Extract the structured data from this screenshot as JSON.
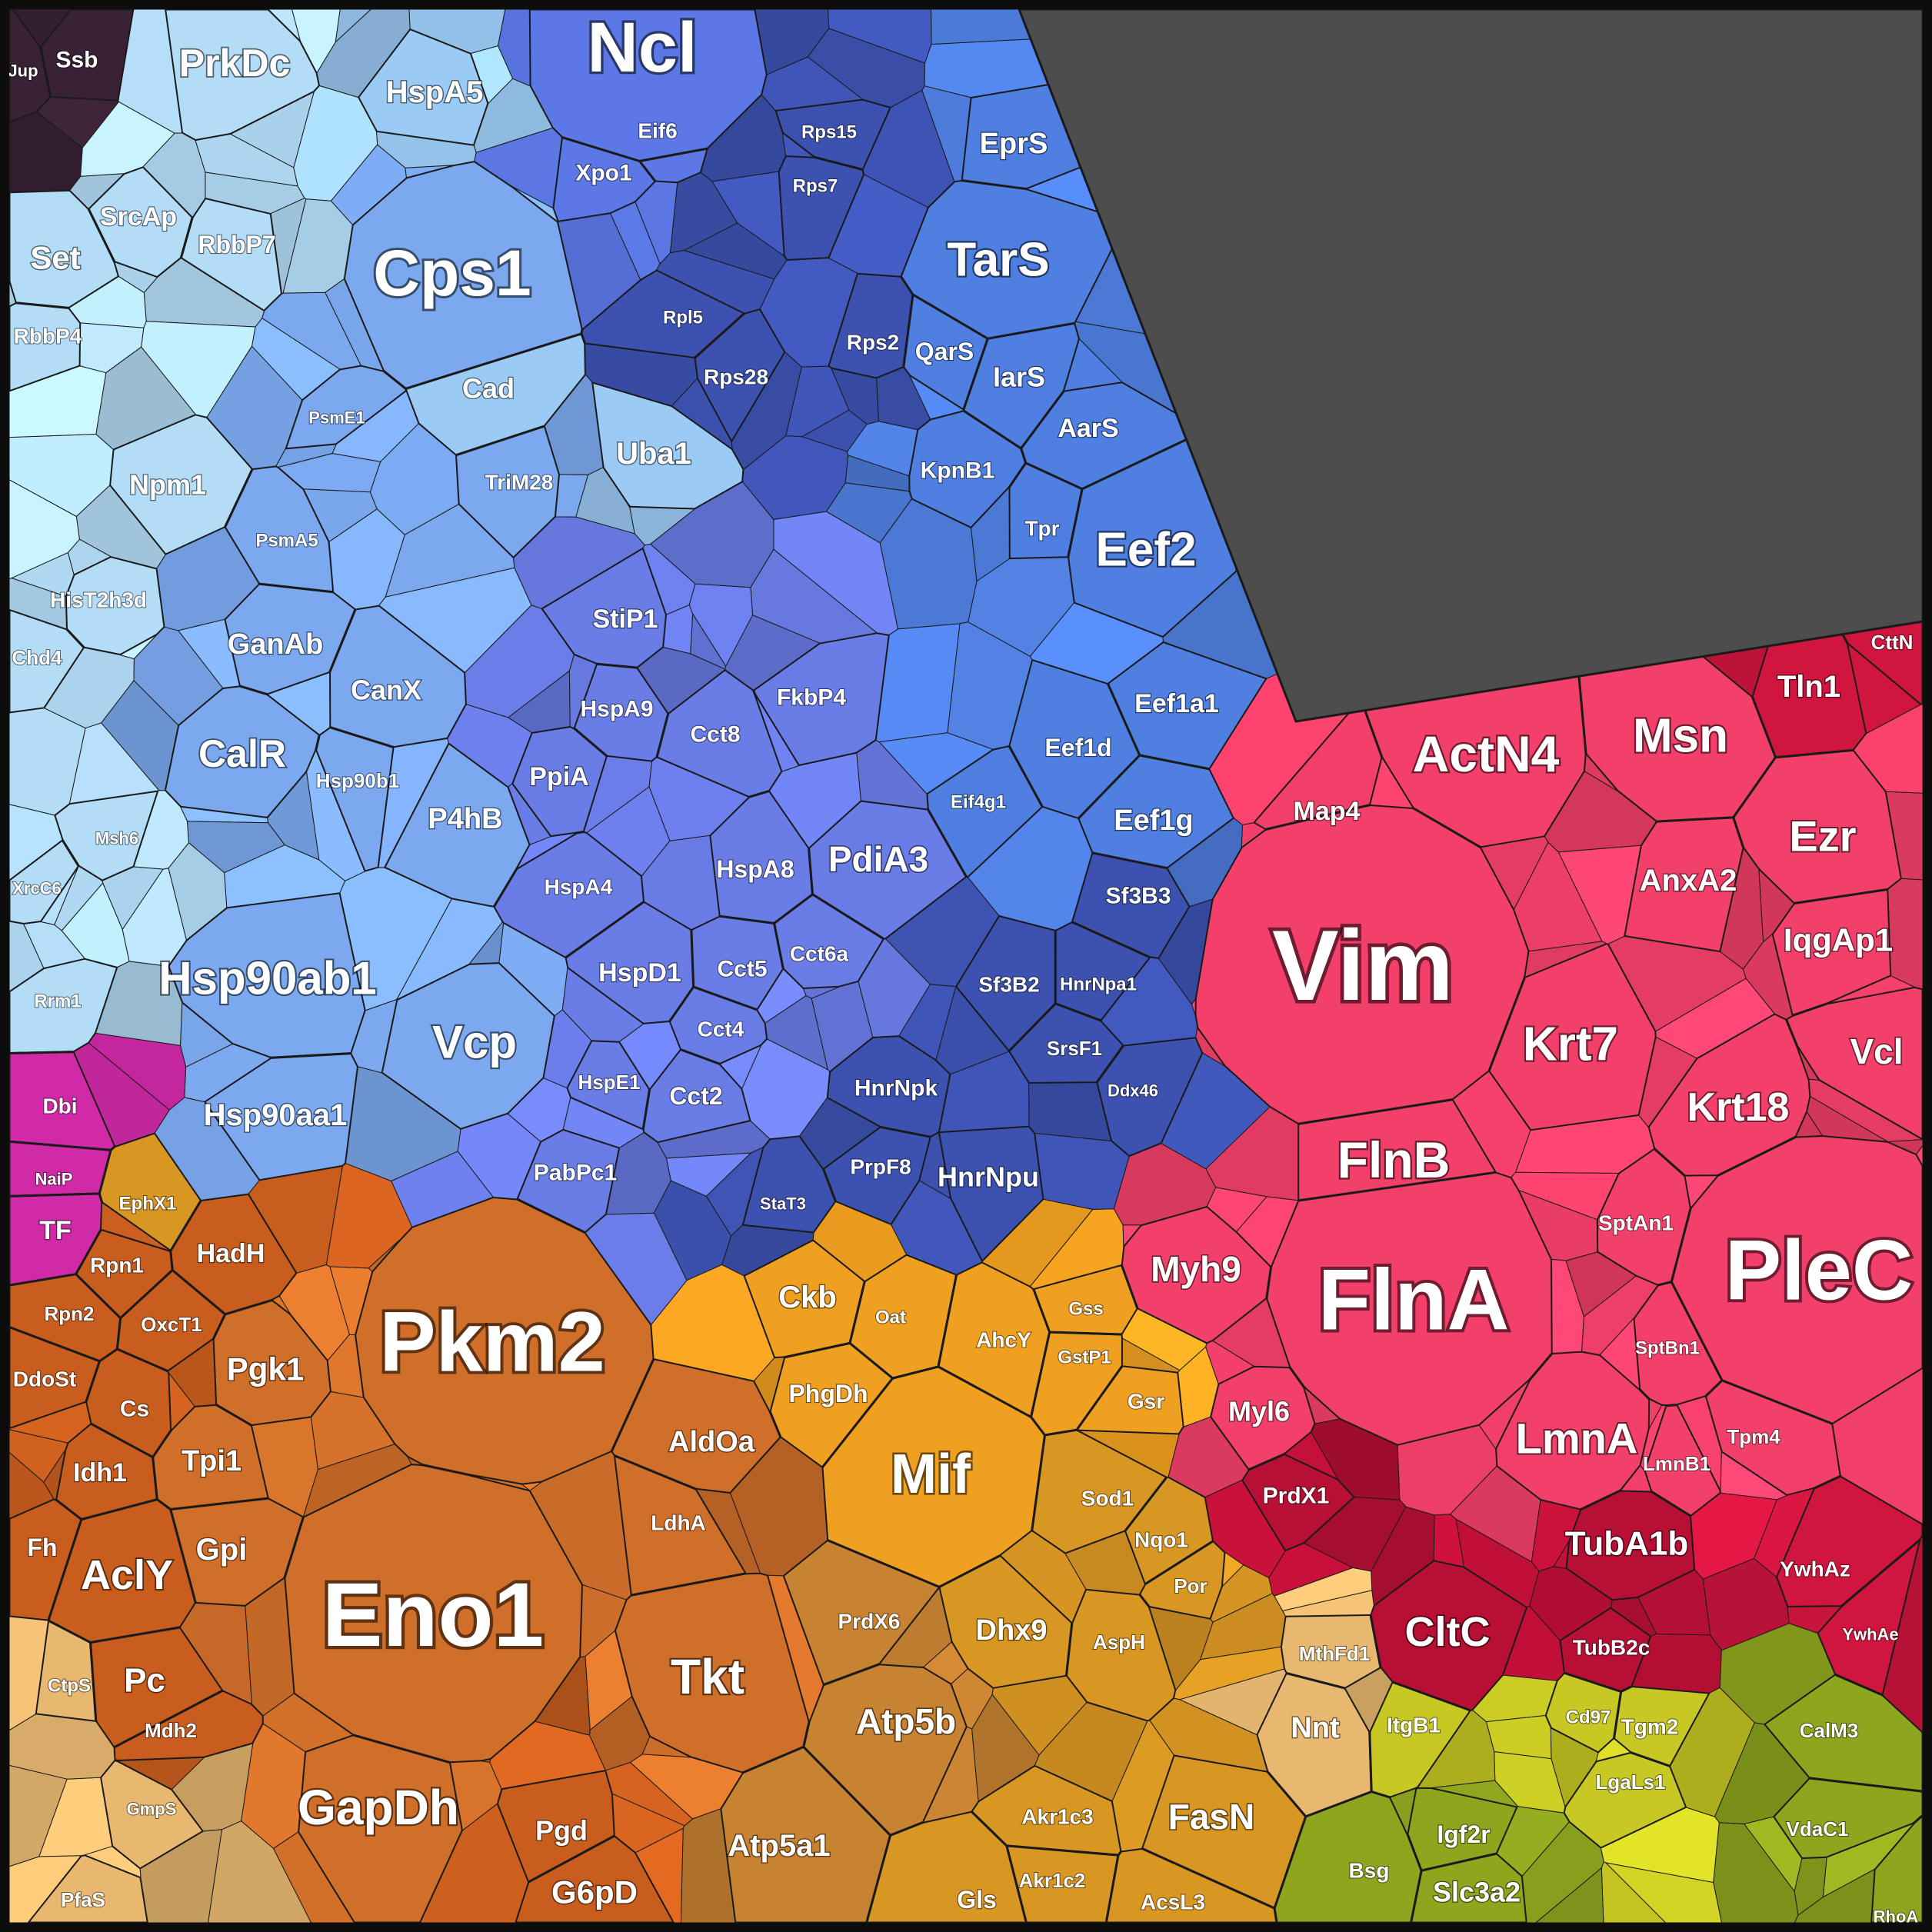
{
  "colors": {
    "background": "#4d4d4d",
    "border": "#0d0d0d",
    "group_colors": {
      "purple_dark": "#3a2236",
      "cyan_light": "#b3dcf7",
      "sky_light": "#9bcaf4",
      "blue_mid": "#7ba8ee",
      "blue_periwinkle": "#6f8fe0",
      "blue_royal": "#5b78e6",
      "blue_navy": "#3d52b0",
      "blue_bright": "#4f7fe0",
      "blue_violet": "#6a7ce6",
      "magenta": "#d12aa7",
      "orange_dark": "#c85d1e",
      "orange_mid": "#d06f2a",
      "orange_amber": "#f0a020",
      "orange_brown": "#c78232",
      "orange_gold": "#d89623",
      "orange_sand": "#e8b870",
      "pink_red": "#f3406a",
      "crimson": "#d0153e",
      "crimson_dark": "#b80f35",
      "olive_yellow": "#c7c823",
      "olive_green": "#8ea51e"
    }
  },
  "cells": [
    {
      "label": "Ncl",
      "color_group": "blue_royal"
    },
    {
      "label": "Cps1",
      "color_group": "blue_mid"
    },
    {
      "label": "PrkDc",
      "color_group": "cyan_light"
    },
    {
      "label": "HspA5",
      "color_group": "sky_light"
    },
    {
      "label": "Ssb",
      "color_group": "purple_dark"
    },
    {
      "label": "Jup",
      "color_group": "purple_dark"
    },
    {
      "label": "Set",
      "color_group": "cyan_light"
    },
    {
      "label": "SrcAp",
      "color_group": "cyan_light"
    },
    {
      "label": "RbbP7",
      "color_group": "cyan_light"
    },
    {
      "label": "RbbP4",
      "color_group": "cyan_light"
    },
    {
      "label": "Npm1",
      "color_group": "cyan_light"
    },
    {
      "label": "HisT2h3d",
      "color_group": "cyan_light"
    },
    {
      "label": "Chd4",
      "color_group": "cyan_light"
    },
    {
      "label": "Msh6",
      "color_group": "cyan_light"
    },
    {
      "label": "XrcC6",
      "color_group": "cyan_light"
    },
    {
      "label": "Rrm1",
      "color_group": "cyan_light"
    },
    {
      "label": "Cad",
      "color_group": "sky_light"
    },
    {
      "label": "Uba1",
      "color_group": "sky_light"
    },
    {
      "label": "TriM28",
      "color_group": "blue_mid"
    },
    {
      "label": "PsmE1",
      "color_group": "blue_mid"
    },
    {
      "label": "PsmA5",
      "color_group": "blue_mid"
    },
    {
      "label": "Xpo1",
      "color_group": "blue_royal"
    },
    {
      "label": "Eif6",
      "color_group": "blue_royal"
    },
    {
      "label": "Rps15",
      "color_group": "blue_navy"
    },
    {
      "label": "Rps7",
      "color_group": "blue_navy"
    },
    {
      "label": "Rpl5",
      "color_group": "blue_navy"
    },
    {
      "label": "Rps28",
      "color_group": "blue_navy"
    },
    {
      "label": "Rps2",
      "color_group": "blue_navy"
    },
    {
      "label": "TarS",
      "color_group": "blue_bright"
    },
    {
      "label": "EprS",
      "color_group": "blue_bright"
    },
    {
      "label": "IarS",
      "color_group": "blue_bright"
    },
    {
      "label": "QarS",
      "color_group": "blue_bright"
    },
    {
      "label": "AarS",
      "color_group": "blue_bright"
    },
    {
      "label": "KpnB1",
      "color_group": "blue_bright"
    },
    {
      "label": "Eef2",
      "color_group": "blue_bright"
    },
    {
      "label": "Eef1a1",
      "color_group": "blue_bright"
    },
    {
      "label": "Eef1d",
      "color_group": "blue_bright"
    },
    {
      "label": "Eef1g",
      "color_group": "blue_bright"
    },
    {
      "label": "Tpr",
      "color_group": "blue_bright"
    },
    {
      "label": "Eif4g1",
      "color_group": "blue_bright"
    },
    {
      "label": "GanAb",
      "color_group": "blue_mid"
    },
    {
      "label": "CanX",
      "color_group": "blue_mid"
    },
    {
      "label": "CalR",
      "color_group": "blue_mid"
    },
    {
      "label": "P4hB",
      "color_group": "blue_mid"
    },
    {
      "label": "Hsp90b1",
      "color_group": "blue_mid"
    },
    {
      "label": "Hsp90ab1",
      "color_group": "blue_mid"
    },
    {
      "label": "Vcp",
      "color_group": "blue_mid"
    },
    {
      "label": "Hsp90aa1",
      "color_group": "blue_mid"
    },
    {
      "label": "StiP1",
      "color_group": "blue_violet"
    },
    {
      "label": "HspA9",
      "color_group": "blue_violet"
    },
    {
      "label": "Cct8",
      "color_group": "blue_violet"
    },
    {
      "label": "FkbP4",
      "color_group": "blue_violet"
    },
    {
      "label": "PpiA",
      "color_group": "blue_violet"
    },
    {
      "label": "HspA8",
      "color_group": "blue_violet"
    },
    {
      "label": "PdiA3",
      "color_group": "blue_violet"
    },
    {
      "label": "HspA4",
      "color_group": "blue_violet"
    },
    {
      "label": "HspD1",
      "color_group": "blue_violet"
    },
    {
      "label": "Cct5",
      "color_group": "blue_violet"
    },
    {
      "label": "Cct6a",
      "color_group": "blue_violet"
    },
    {
      "label": "Cct4",
      "color_group": "blue_violet"
    },
    {
      "label": "Cct2",
      "color_group": "blue_violet"
    },
    {
      "label": "HspE1",
      "color_group": "blue_violet"
    },
    {
      "label": "PabPc1",
      "color_group": "blue_violet"
    },
    {
      "label": "Sf3B3",
      "color_group": "blue_navy"
    },
    {
      "label": "Sf3B2",
      "color_group": "blue_navy"
    },
    {
      "label": "HnrNpa1",
      "color_group": "blue_navy"
    },
    {
      "label": "HnrNpk",
      "color_group": "blue_navy"
    },
    {
      "label": "SrsF1",
      "color_group": "blue_navy"
    },
    {
      "label": "Ddx46",
      "color_group": "blue_navy"
    },
    {
      "label": "PrpF8",
      "color_group": "blue_navy"
    },
    {
      "label": "HnrNpu",
      "color_group": "blue_navy"
    },
    {
      "label": "StaT3",
      "color_group": "blue_navy"
    },
    {
      "label": "Dbi",
      "color_group": "magenta"
    },
    {
      "label": "NaiP",
      "color_group": "magenta"
    },
    {
      "label": "TF",
      "color_group": "magenta"
    },
    {
      "label": "Pkm2",
      "color_group": "orange_mid"
    },
    {
      "label": "Eno1",
      "color_group": "orange_mid"
    },
    {
      "label": "GapDh",
      "color_group": "orange_mid"
    },
    {
      "label": "Tkt",
      "color_group": "orange_mid"
    },
    {
      "label": "AldOa",
      "color_group": "orange_mid"
    },
    {
      "label": "LdhA",
      "color_group": "orange_mid"
    },
    {
      "label": "Pgk1",
      "color_group": "orange_mid"
    },
    {
      "label": "Tpi1",
      "color_group": "orange_mid"
    },
    {
      "label": "Gpi",
      "color_group": "orange_mid"
    },
    {
      "label": "Pgd",
      "color_group": "orange_dark"
    },
    {
      "label": "G6pD",
      "color_group": "orange_dark"
    },
    {
      "label": "HadH",
      "color_group": "orange_dark"
    },
    {
      "label": "Rpn1",
      "color_group": "orange_dark"
    },
    {
      "label": "Rpn2",
      "color_group": "orange_dark"
    },
    {
      "label": "OxcT1",
      "color_group": "orange_dark"
    },
    {
      "label": "EphX1",
      "color_group": "orange_gold"
    },
    {
      "label": "AclY",
      "color_group": "orange_dark"
    },
    {
      "label": "Idh1",
      "color_group": "orange_dark"
    },
    {
      "label": "Pc",
      "color_group": "orange_dark"
    },
    {
      "label": "DdoSt",
      "color_group": "orange_dark"
    },
    {
      "label": "Cs",
      "color_group": "orange_dark"
    },
    {
      "label": "Fh",
      "color_group": "orange_dark"
    },
    {
      "label": "Mdh2",
      "color_group": "orange_dark"
    },
    {
      "label": "CtpS",
      "color_group": "orange_sand"
    },
    {
      "label": "GmpS",
      "color_group": "orange_sand"
    },
    {
      "label": "PfaS",
      "color_group": "orange_sand"
    },
    {
      "label": "Ckb",
      "color_group": "orange_amber"
    },
    {
      "label": "PhgDh",
      "color_group": "orange_amber"
    },
    {
      "label": "Mif",
      "color_group": "orange_amber"
    },
    {
      "label": "AhcY",
      "color_group": "orange_amber"
    },
    {
      "label": "Oat",
      "color_group": "orange_amber"
    },
    {
      "label": "GstP1",
      "color_group": "orange_amber"
    },
    {
      "label": "Gsr",
      "color_group": "orange_amber"
    },
    {
      "label": "Gss",
      "color_group": "orange_amber"
    },
    {
      "label": "Sod1",
      "color_group": "orange_gold"
    },
    {
      "label": "Nqo1",
      "color_group": "orange_gold"
    },
    {
      "label": "Por",
      "color_group": "orange_gold"
    },
    {
      "label": "Dhx9",
      "color_group": "orange_gold"
    },
    {
      "label": "AspH",
      "color_group": "orange_gold"
    },
    {
      "label": "PrdX6",
      "color_group": "orange_brown"
    },
    {
      "label": "Atp5b",
      "color_group": "orange_brown"
    },
    {
      "label": "Atp5a1",
      "color_group": "orange_brown"
    },
    {
      "label": "Akr1c3",
      "color_group": "orange_gold"
    },
    {
      "label": "Akr1c2",
      "color_group": "orange_gold"
    },
    {
      "label": "FasN",
      "color_group": "orange_gold"
    },
    {
      "label": "AcsL3",
      "color_group": "orange_gold"
    },
    {
      "label": "Gls",
      "color_group": "orange_gold"
    },
    {
      "label": "MthFd1",
      "color_group": "orange_sand"
    },
    {
      "label": "Nnt",
      "color_group": "orange_sand"
    },
    {
      "label": "Vim",
      "color_group": "pink_red"
    },
    {
      "label": "FlnA",
      "color_group": "pink_red"
    },
    {
      "label": "FlnB",
      "color_group": "pink_red"
    },
    {
      "label": "PleC",
      "color_group": "pink_red"
    },
    {
      "label": "ActN4",
      "color_group": "pink_red"
    },
    {
      "label": "Msn",
      "color_group": "pink_red"
    },
    {
      "label": "Ezr",
      "color_group": "pink_red"
    },
    {
      "label": "AnxA2",
      "color_group": "pink_red"
    },
    {
      "label": "IqgAp1",
      "color_group": "pink_red"
    },
    {
      "label": "Krt7",
      "color_group": "pink_red"
    },
    {
      "label": "Krt18",
      "color_group": "pink_red"
    },
    {
      "label": "Vcl",
      "color_group": "pink_red"
    },
    {
      "label": "Map4",
      "color_group": "pink_red"
    },
    {
      "label": "Myh9",
      "color_group": "pink_red"
    },
    {
      "label": "Myl6",
      "color_group": "pink_red"
    },
    {
      "label": "SptAn1",
      "color_group": "pink_red"
    },
    {
      "label": "SptBn1",
      "color_group": "pink_red"
    },
    {
      "label": "LmnA",
      "color_group": "pink_red"
    },
    {
      "label": "LmnB1",
      "color_group": "pink_red"
    },
    {
      "label": "Tpm4",
      "color_group": "pink_red"
    },
    {
      "label": "Tln1",
      "color_group": "crimson"
    },
    {
      "label": "CttN",
      "color_group": "crimson"
    },
    {
      "label": "TubA1b",
      "color_group": "crimson_dark"
    },
    {
      "label": "TubB2c",
      "color_group": "crimson_dark"
    },
    {
      "label": "CltC",
      "color_group": "crimson_dark"
    },
    {
      "label": "PrdX1",
      "color_group": "crimson_dark"
    },
    {
      "label": "YwhAz",
      "color_group": "crimson"
    },
    {
      "label": "YwhAe",
      "color_group": "crimson"
    },
    {
      "label": "ItgB1",
      "color_group": "olive_yellow"
    },
    {
      "label": "Tgm2",
      "color_group": "olive_yellow"
    },
    {
      "label": "Cd97",
      "color_group": "olive_yellow"
    },
    {
      "label": "LgaLs1",
      "color_group": "olive_yellow"
    },
    {
      "label": "Igf2r",
      "color_group": "olive_green"
    },
    {
      "label": "Slc3a2",
      "color_group": "olive_green"
    },
    {
      "label": "Bsg",
      "color_group": "olive_green"
    },
    {
      "label": "CalM3",
      "color_group": "olive_green"
    },
    {
      "label": "VdaC1",
      "color_group": "olive_green"
    },
    {
      "label": "RhoA",
      "color_group": "olive_green"
    }
  ]
}
